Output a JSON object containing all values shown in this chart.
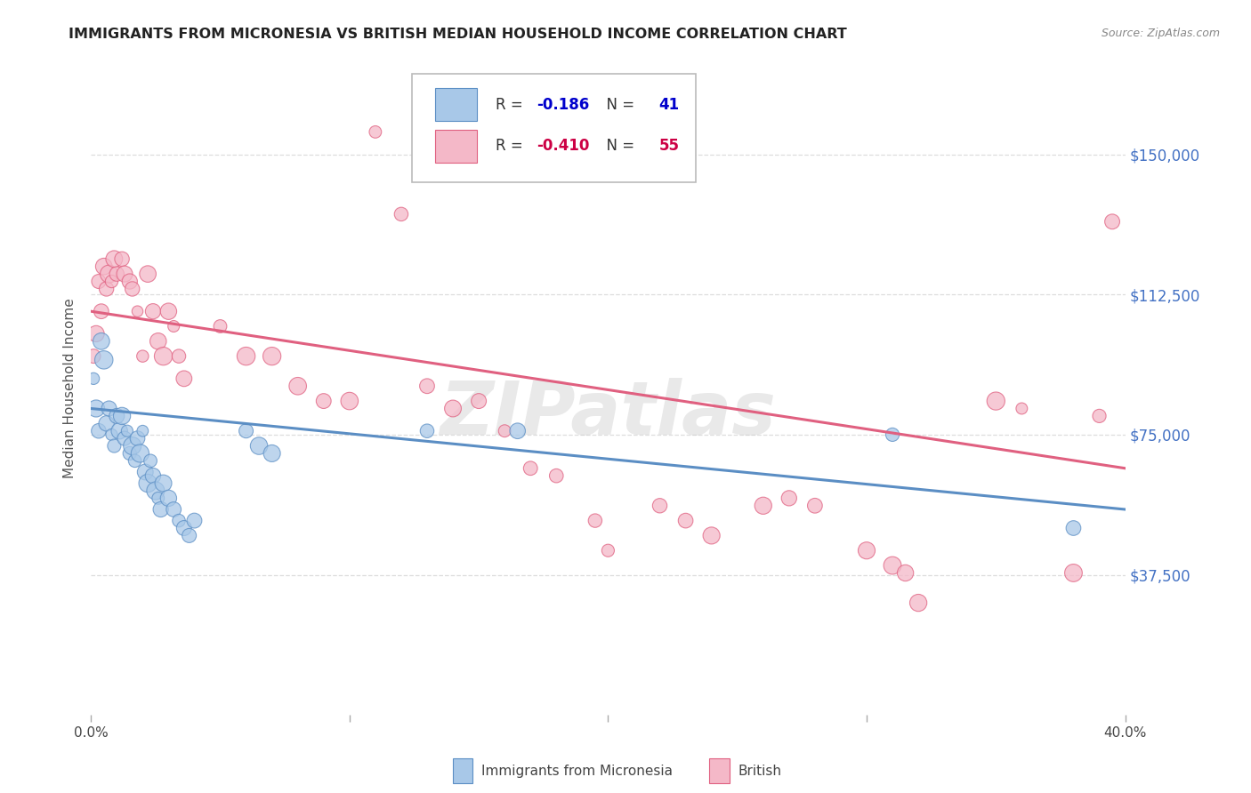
{
  "title": "IMMIGRANTS FROM MICRONESIA VS BRITISH MEDIAN HOUSEHOLD INCOME CORRELATION CHART",
  "source": "Source: ZipAtlas.com",
  "ylabel": "Median Household Income",
  "watermark": "ZIPatlas",
  "xlim": [
    0,
    0.4
  ],
  "ylim": [
    0,
    175000
  ],
  "yticks": [
    37500,
    75000,
    112500,
    150000
  ],
  "ytick_labels": [
    "$37,500",
    "$75,000",
    "$112,500",
    "$150,000"
  ],
  "xticks": [
    0.0,
    0.1,
    0.2,
    0.3,
    0.4
  ],
  "xtick_labels": [
    "0.0%",
    "",
    "",
    "",
    "40.0%"
  ],
  "legend_entries": [
    {
      "label": "Immigrants from Micronesia",
      "color": "#a8c8e8",
      "edge": "#5b8ec4",
      "R": "-0.186",
      "N": "41"
    },
    {
      "label": "British",
      "color": "#f4b8c8",
      "edge": "#e06080",
      "R": "-0.410",
      "N": "55"
    }
  ],
  "blue_color": "#5b8ec4",
  "pink_color": "#e06080",
  "blue_fill": "#a8c8e8",
  "pink_fill": "#f4b8c8",
  "regression_blue": [
    0.0,
    82000,
    0.4,
    55000
  ],
  "regression_pink": [
    0.0,
    108000,
    0.4,
    66000
  ],
  "blue_points": [
    [
      0.001,
      90000
    ],
    [
      0.002,
      82000
    ],
    [
      0.003,
      76000
    ],
    [
      0.004,
      100000
    ],
    [
      0.005,
      95000
    ],
    [
      0.006,
      78000
    ],
    [
      0.007,
      82000
    ],
    [
      0.008,
      75000
    ],
    [
      0.009,
      72000
    ],
    [
      0.01,
      80000
    ],
    [
      0.011,
      76000
    ],
    [
      0.012,
      80000
    ],
    [
      0.013,
      74000
    ],
    [
      0.014,
      76000
    ],
    [
      0.015,
      70000
    ],
    [
      0.016,
      72000
    ],
    [
      0.017,
      68000
    ],
    [
      0.018,
      74000
    ],
    [
      0.019,
      70000
    ],
    [
      0.02,
      76000
    ],
    [
      0.021,
      65000
    ],
    [
      0.022,
      62000
    ],
    [
      0.023,
      68000
    ],
    [
      0.024,
      64000
    ],
    [
      0.025,
      60000
    ],
    [
      0.026,
      58000
    ],
    [
      0.027,
      55000
    ],
    [
      0.028,
      62000
    ],
    [
      0.03,
      58000
    ],
    [
      0.032,
      55000
    ],
    [
      0.034,
      52000
    ],
    [
      0.036,
      50000
    ],
    [
      0.038,
      48000
    ],
    [
      0.04,
      52000
    ],
    [
      0.06,
      76000
    ],
    [
      0.065,
      72000
    ],
    [
      0.07,
      70000
    ],
    [
      0.13,
      76000
    ],
    [
      0.165,
      76000
    ],
    [
      0.31,
      75000
    ],
    [
      0.38,
      50000
    ]
  ],
  "pink_points": [
    [
      0.001,
      96000
    ],
    [
      0.002,
      102000
    ],
    [
      0.003,
      116000
    ],
    [
      0.004,
      108000
    ],
    [
      0.005,
      120000
    ],
    [
      0.006,
      114000
    ],
    [
      0.007,
      118000
    ],
    [
      0.008,
      116000
    ],
    [
      0.009,
      122000
    ],
    [
      0.01,
      118000
    ],
    [
      0.012,
      122000
    ],
    [
      0.013,
      118000
    ],
    [
      0.015,
      116000
    ],
    [
      0.016,
      114000
    ],
    [
      0.018,
      108000
    ],
    [
      0.02,
      96000
    ],
    [
      0.022,
      118000
    ],
    [
      0.024,
      108000
    ],
    [
      0.026,
      100000
    ],
    [
      0.028,
      96000
    ],
    [
      0.03,
      108000
    ],
    [
      0.032,
      104000
    ],
    [
      0.034,
      96000
    ],
    [
      0.036,
      90000
    ],
    [
      0.05,
      104000
    ],
    [
      0.06,
      96000
    ],
    [
      0.07,
      96000
    ],
    [
      0.08,
      88000
    ],
    [
      0.09,
      84000
    ],
    [
      0.1,
      84000
    ],
    [
      0.11,
      156000
    ],
    [
      0.12,
      134000
    ],
    [
      0.13,
      88000
    ],
    [
      0.14,
      82000
    ],
    [
      0.15,
      84000
    ],
    [
      0.16,
      76000
    ],
    [
      0.17,
      66000
    ],
    [
      0.18,
      64000
    ],
    [
      0.195,
      52000
    ],
    [
      0.2,
      44000
    ],
    [
      0.22,
      56000
    ],
    [
      0.23,
      52000
    ],
    [
      0.24,
      48000
    ],
    [
      0.26,
      56000
    ],
    [
      0.27,
      58000
    ],
    [
      0.28,
      56000
    ],
    [
      0.3,
      44000
    ],
    [
      0.31,
      40000
    ],
    [
      0.315,
      38000
    ],
    [
      0.32,
      30000
    ],
    [
      0.35,
      84000
    ],
    [
      0.36,
      82000
    ],
    [
      0.38,
      38000
    ],
    [
      0.39,
      80000
    ],
    [
      0.395,
      132000
    ]
  ],
  "grid_color": "#dddddd",
  "bg_color": "#ffffff",
  "title_color": "#222222",
  "axis_label_color": "#555555",
  "ytick_color": "#4472c4",
  "watermark_color": "#c8c8c8",
  "watermark_alpha": 0.4,
  "R_color_blue": "#0000cc",
  "R_color_pink": "#cc0044",
  "N_color_blue": "#0000cc",
  "N_color_pink": "#cc0044"
}
